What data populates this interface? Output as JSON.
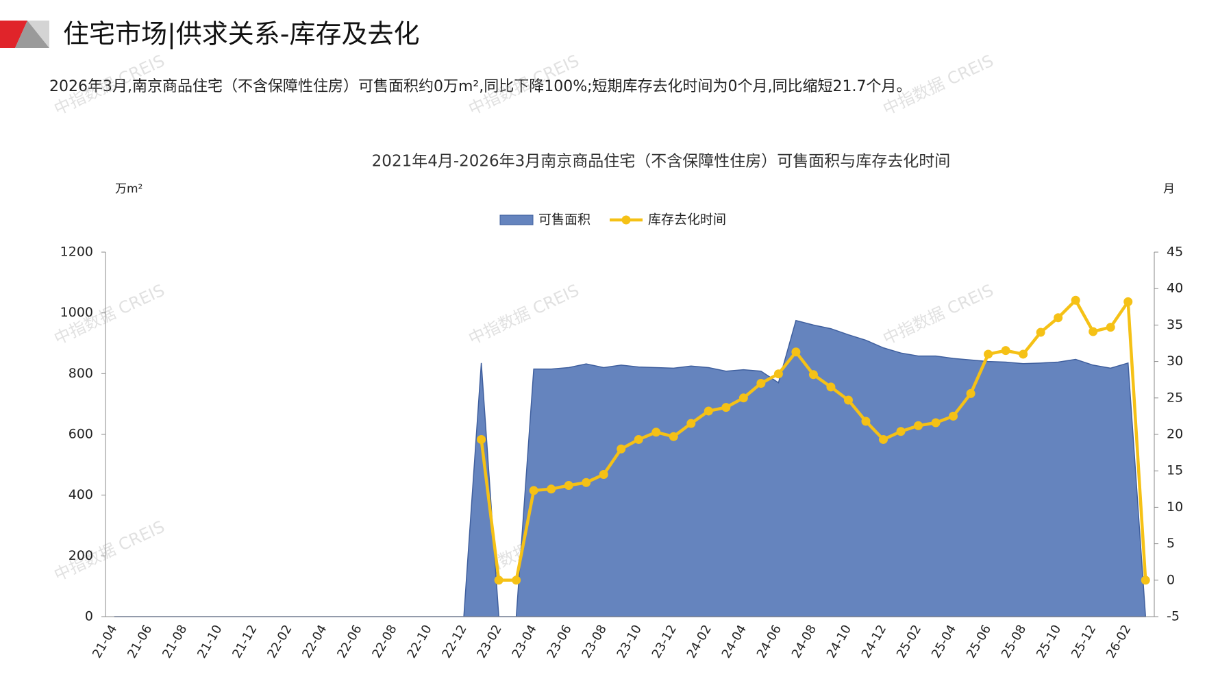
{
  "header": {
    "title": "住宅市场|供求关系-库存及去化",
    "summary": "2026年3月,南京商品住宅（不含保障性住房）可售面积约0万m²,同比下降100%;短期库存去化时间为0个月,同比缩短21.7个月。",
    "watermark": "中指数据 CREIS"
  },
  "chart_data": {
    "type": "bar-line",
    "title": "2021年4月-2026年3月南京商品住宅（不含保障性住房）可售面积与库存去化时间",
    "y_label": "万m²",
    "y2_label": "月",
    "categories": [
      "21-04",
      null,
      "21-06",
      null,
      "21-08",
      null,
      "21-10",
      null,
      "21-12",
      null,
      "22-02",
      null,
      "22-04",
      null,
      "22-06",
      null,
      "22-08",
      null,
      "22-10",
      null,
      "22-12",
      null,
      "23-02",
      null,
      "23-04",
      null,
      "23-06",
      null,
      "23-08",
      null,
      "23-10",
      null,
      "23-12",
      null,
      "24-02",
      null,
      "24-04",
      null,
      "24-06",
      null,
      "24-08",
      null,
      "24-10",
      null,
      "24-12",
      null,
      "25-02",
      null,
      "25-04",
      null,
      "25-06",
      null,
      "25-08",
      null,
      "25-10",
      null,
      "25-12",
      null,
      "26-02",
      null
    ],
    "series": [
      {
        "name": "可售面积",
        "type": "area",
        "color": "#6584be",
        "values": [
          0,
          0,
          0,
          0,
          0,
          0,
          0,
          0,
          0,
          0,
          0,
          0,
          0,
          0,
          0,
          0,
          0,
          0,
          0,
          0,
          0,
          835,
          0,
          0,
          815,
          815,
          820,
          832,
          820,
          828,
          822,
          820,
          818,
          825,
          820,
          808,
          813,
          808,
          770,
          975,
          960,
          948,
          928,
          910,
          885,
          868,
          858,
          858,
          850,
          845,
          840,
          838,
          833,
          835,
          838,
          847,
          828,
          818,
          835,
          0
        ]
      },
      {
        "name": "库存去化时间",
        "type": "line",
        "axis": "y2",
        "color": "#f5c116",
        "values": [
          null,
          null,
          null,
          null,
          null,
          null,
          null,
          null,
          null,
          null,
          null,
          null,
          null,
          null,
          null,
          null,
          null,
          null,
          null,
          null,
          null,
          19.3,
          0,
          0,
          12.3,
          12.5,
          13,
          13.4,
          14.5,
          18,
          19.3,
          20.3,
          19.7,
          21.5,
          23.2,
          23.7,
          25,
          27,
          28.3,
          31.3,
          28.2,
          26.5,
          24.7,
          21.8,
          19.3,
          20.4,
          21.2,
          21.6,
          22.5,
          25.6,
          31,
          31.5,
          31,
          34,
          36,
          38.4,
          34.1,
          34.7,
          38.2,
          0
        ]
      }
    ],
    "ylim": [
      0,
      1200
    ],
    "yticks": [
      0,
      200,
      400,
      600,
      800,
      1000,
      1200
    ],
    "y2lim": [
      -5,
      45
    ],
    "y2ticks": [
      -5,
      0,
      5,
      10,
      15,
      20,
      25,
      30,
      35,
      40,
      45
    ],
    "legend": "top",
    "grid": false
  }
}
